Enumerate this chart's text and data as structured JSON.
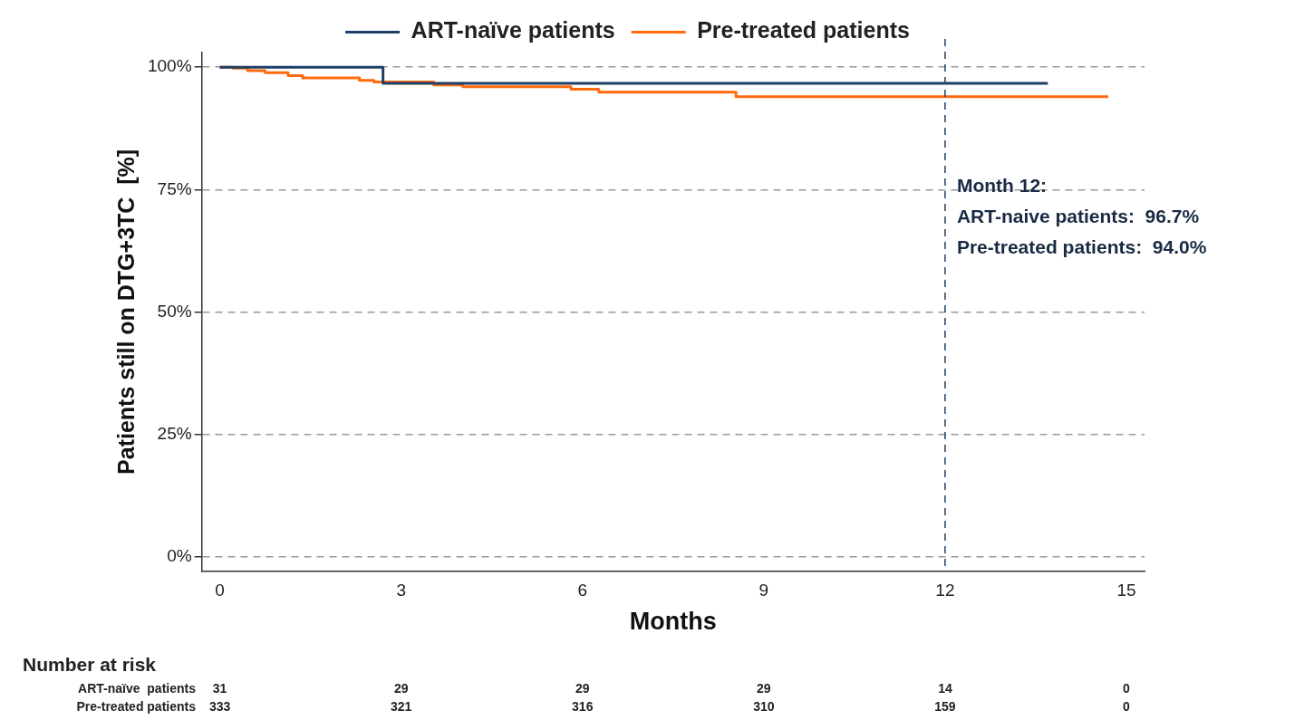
{
  "chart_data": {
    "type": "step",
    "xlabel": "Months",
    "ylabel": "Patients still on DTG+3TC  [%]",
    "xlim": [
      -0.3,
      15.3
    ],
    "xticks": [
      0,
      3,
      6,
      9,
      12,
      15
    ],
    "ylim": [
      -3,
      103
    ],
    "yticks": [
      {
        "value": 0,
        "label": "0%"
      },
      {
        "value": 25,
        "label": "25%"
      },
      {
        "value": 50,
        "label": "50%"
      },
      {
        "value": 75,
        "label": "75%"
      },
      {
        "value": 100,
        "label": "100%"
      }
    ],
    "grid": "y",
    "legend": "top",
    "marker": "none",
    "line_style": "solid",
    "series": [
      {
        "name": "ART-naïve patients",
        "color": "#1f3f66",
        "x": [
          0,
          2.7,
          13.7
        ],
        "values": [
          100,
          96.7,
          96.7
        ]
      },
      {
        "name": "Pre-treated patients",
        "color": "#ff6a0e",
        "x": [
          0,
          0.22,
          0.46,
          0.75,
          1.13,
          1.37,
          2.31,
          2.55,
          3.54,
          4.02,
          5.81,
          6.27,
          8.54,
          14.7
        ],
        "values": [
          100,
          99.8,
          99.3,
          98.9,
          98.3,
          97.8,
          97.3,
          97.0,
          96.4,
          96.0,
          95.5,
          94.9,
          94.0,
          94.0
        ]
      }
    ],
    "ref_lines": [
      {
        "axis": "x",
        "value": 12,
        "color": "#1f3f66",
        "line_style": "dashed"
      }
    ],
    "annotations": [
      "Month 12:",
      "ART-naive patients:  96.7%",
      "Pre-treated patients:  94.0%",
      "Number at risk",
      "ART-naïve  patients",
      "31",
      "29",
      "29",
      "29",
      "14",
      "0",
      "Pre-treated patients",
      "333",
      "321",
      "316",
      "310",
      "159",
      "0"
    ]
  }
}
